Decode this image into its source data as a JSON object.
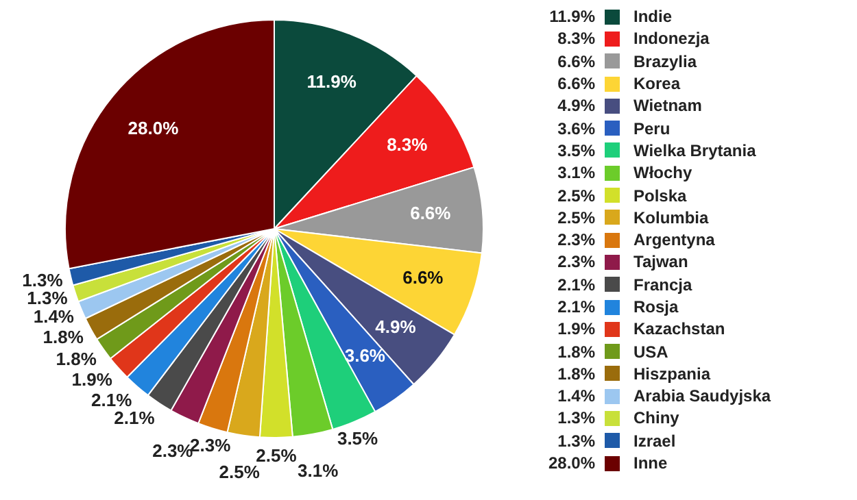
{
  "chart_data": {
    "type": "pie",
    "categories": [
      "Indie",
      "Indonezja",
      "Brazylia",
      "Korea",
      "Wietnam",
      "Peru",
      "Wielka Brytania",
      "Włochy",
      "Polska",
      "Kolumbia",
      "Argentyna",
      "Tajwan",
      "Francja",
      "Rosja",
      "Kazachstan",
      "USA",
      "Hiszpania",
      "Arabia Saudyjska",
      "Chiny",
      "Izrael",
      "Inne"
    ],
    "values": [
      11.9,
      8.3,
      6.6,
      6.6,
      4.9,
      3.6,
      3.5,
      3.1,
      2.5,
      2.5,
      2.3,
      2.3,
      2.1,
      2.1,
      1.9,
      1.8,
      1.8,
      1.4,
      1.3,
      1.3,
      28.0
    ],
    "value_labels": [
      "11.9%",
      "8.3%",
      "6.6%",
      "6.6%",
      "4.9%",
      "3.6%",
      "3.5%",
      "3.1%",
      "2.5%",
      "2.5%",
      "2.3%",
      "2.3%",
      "2.1%",
      "2.1%",
      "1.9%",
      "1.8%",
      "1.8%",
      "1.4%",
      "1.3%",
      "1.3%",
      "28.0%"
    ],
    "colors": [
      "#0b4a3c",
      "#ee1c1c",
      "#999999",
      "#fdd535",
      "#484e80",
      "#2a5fc0",
      "#1ecf7a",
      "#6ccc2a",
      "#d2e02a",
      "#d9a81c",
      "#d9770e",
      "#8f1a4a",
      "#4a4a4a",
      "#2184dd",
      "#e0361a",
      "#6f9a1a",
      "#9a6c0c",
      "#9cc7f0",
      "#c8e03a",
      "#1e5aa8",
      "#6b0000"
    ],
    "legend": "right"
  }
}
